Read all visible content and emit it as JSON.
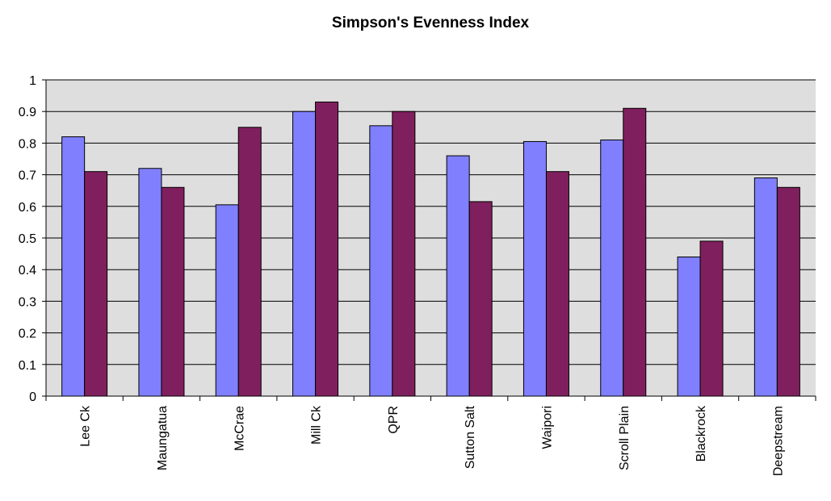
{
  "chart_data": {
    "type": "bar",
    "title": "Simpson's Evenness Index",
    "categories": [
      "Lee Ck",
      "Maungatua",
      "McCrae",
      "Mill Ck",
      "QPR",
      "Sutton Salt",
      "Waipori",
      "Scroll Plain",
      "Blackrock",
      "Deepstream"
    ],
    "series": [
      {
        "color": "#8080ff",
        "values": [
          0.82,
          0.72,
          0.605,
          0.9,
          0.855,
          0.76,
          0.805,
          0.81,
          0.44,
          0.69
        ]
      },
      {
        "color": "#801f5e",
        "values": [
          0.71,
          0.66,
          0.85,
          0.93,
          0.9,
          0.615,
          0.71,
          0.91,
          0.49,
          0.66
        ]
      }
    ],
    "ylim": [
      0,
      1
    ],
    "yticks": [
      0,
      0.1,
      0.2,
      0.3,
      0.4,
      0.5,
      0.6,
      0.7,
      0.8,
      0.9,
      1
    ],
    "grid": true
  }
}
